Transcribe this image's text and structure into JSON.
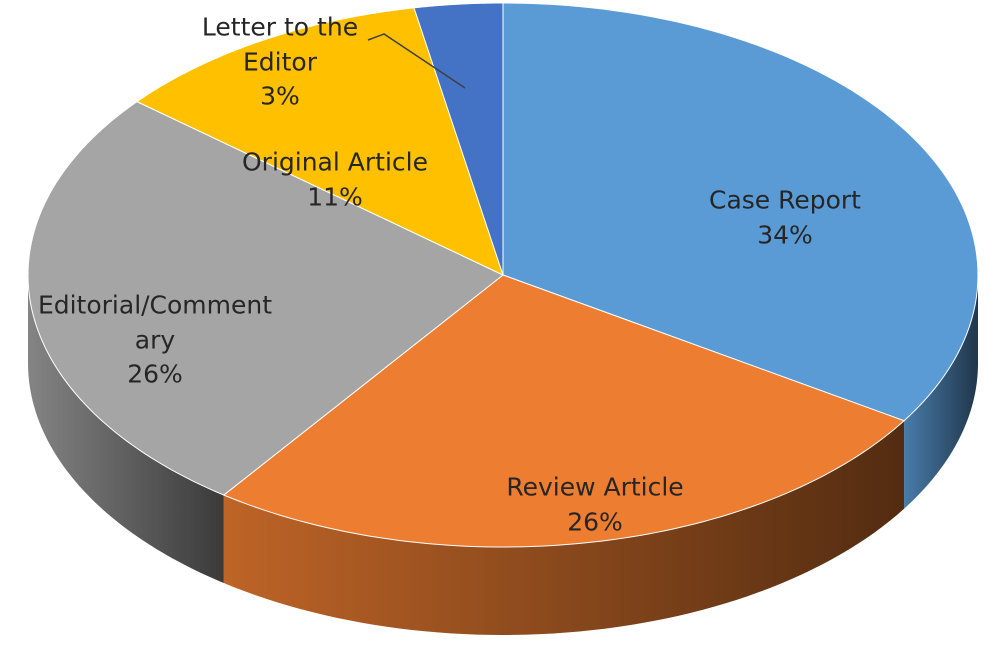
{
  "chart_data": {
    "type": "pie",
    "categories": [
      "Case Report",
      "Review Article",
      "Editorial/Commentary",
      "Original Article",
      "Letter to the Editor"
    ],
    "values": [
      34,
      26,
      26,
      11,
      3
    ],
    "value_labels": [
      "34%",
      "26%",
      "26%",
      "11%",
      "3%"
    ],
    "colors": [
      "#5b9bd5",
      "#ed7d31",
      "#a5a5a5",
      "#ffc000",
      "#4472c4"
    ]
  }
}
